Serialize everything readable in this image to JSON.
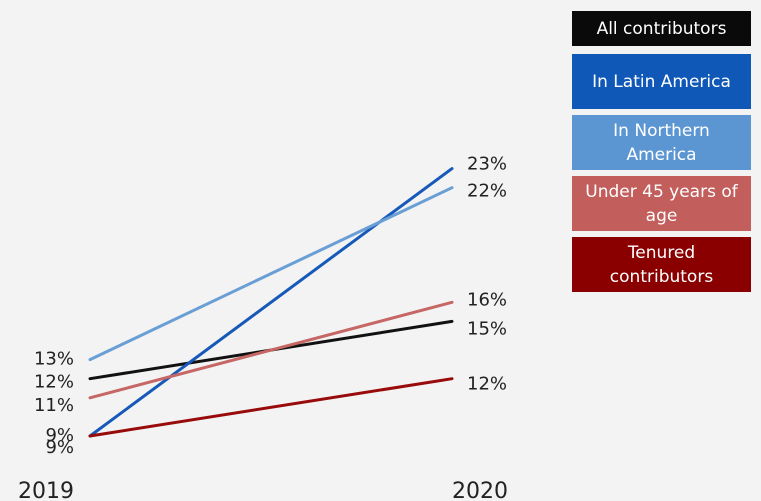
{
  "chart_data": {
    "type": "line",
    "x": [
      "2019",
      "2020"
    ],
    "series": [
      {
        "name": "All contributors",
        "color": "#111111",
        "values": [
          12,
          15
        ],
        "labels": [
          "12%",
          "15%"
        ]
      },
      {
        "name": "In Latin America",
        "color": "#1659b8",
        "values": [
          9,
          23
        ],
        "labels": [
          "9%",
          "23%"
        ]
      },
      {
        "name": "In Northern America",
        "color": "#6a9fd6",
        "values": [
          13,
          22
        ],
        "labels": [
          "13%",
          "22%"
        ]
      },
      {
        "name": "Under 45 years of age",
        "color": "#c66665",
        "values": [
          11,
          16
        ],
        "labels": [
          "11%",
          "16%"
        ]
      },
      {
        "name": "Tenured contributors",
        "color": "#990a0a",
        "values": [
          9,
          12
        ],
        "labels": [
          "9%",
          "12%"
        ]
      }
    ],
    "legend_position": "right",
    "grid": false
  }
}
